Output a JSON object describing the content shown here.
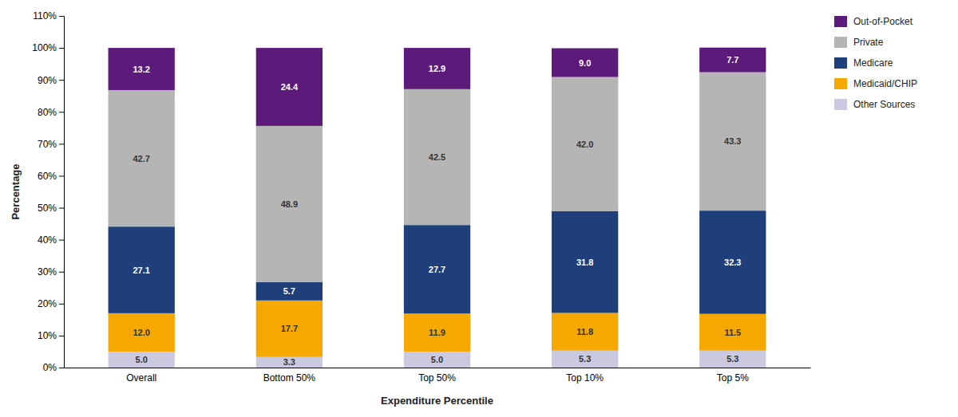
{
  "chart_data": {
    "type": "bar",
    "stacked": true,
    "data_labels": true,
    "grid": false,
    "legend": "right",
    "xlabel": "Expenditure Percentile",
    "ylabel": "Percentage",
    "categories": [
      "Overall",
      "Bottom 50%",
      "Top 50%",
      "Top 10%",
      "Top 5%"
    ],
    "series": [
      {
        "name": "Other Sources",
        "color": "#cac9e0",
        "values": [
          5.0,
          3.3,
          5.0,
          5.3,
          5.3
        ],
        "value_labels": [
          "5.0",
          "3.3",
          "5.0",
          "5.3",
          "5.3"
        ]
      },
      {
        "name": "Medicaid/CHIP",
        "color": "#f5a800",
        "values": [
          12.0,
          17.7,
          11.9,
          11.8,
          11.5
        ],
        "value_labels": [
          "12.0",
          "17.7",
          "11.9",
          "11.8",
          "11.5"
        ]
      },
      {
        "name": "Medicare",
        "color": "#1f3f7a",
        "values": [
          27.1,
          5.7,
          27.7,
          31.8,
          32.3
        ],
        "value_labels": [
          "27.1",
          "5.7",
          "27.7",
          "31.8",
          "32.3"
        ]
      },
      {
        "name": "Private",
        "color": "#b5b5b5",
        "values": [
          42.7,
          48.9,
          42.5,
          42.0,
          43.3
        ],
        "value_labels": [
          "42.7",
          "48.9",
          "42.5",
          "42.0",
          "43.3"
        ]
      },
      {
        "name": "Out-of-Pocket",
        "color": "#5c1a7a",
        "values": [
          13.2,
          24.4,
          12.9,
          9.0,
          7.7
        ],
        "value_labels": [
          "13.2",
          "24.4",
          "12.9",
          "9.0",
          "7.7"
        ]
      }
    ],
    "ylim": [
      0,
      110
    ],
    "yticks": [
      {
        "value": 0,
        "label": "0%"
      },
      {
        "value": 10,
        "label": "10%"
      },
      {
        "value": 20,
        "label": "20%"
      },
      {
        "value": 30,
        "label": "30%"
      },
      {
        "value": 40,
        "label": "40%"
      },
      {
        "value": 50,
        "label": "50%"
      },
      {
        "value": 60,
        "label": "60%"
      },
      {
        "value": 70,
        "label": "70%"
      },
      {
        "value": 80,
        "label": "80%"
      },
      {
        "value": 90,
        "label": "90%"
      },
      {
        "value": 100,
        "label": "100%"
      },
      {
        "value": 110,
        "label": "110%"
      }
    ]
  }
}
